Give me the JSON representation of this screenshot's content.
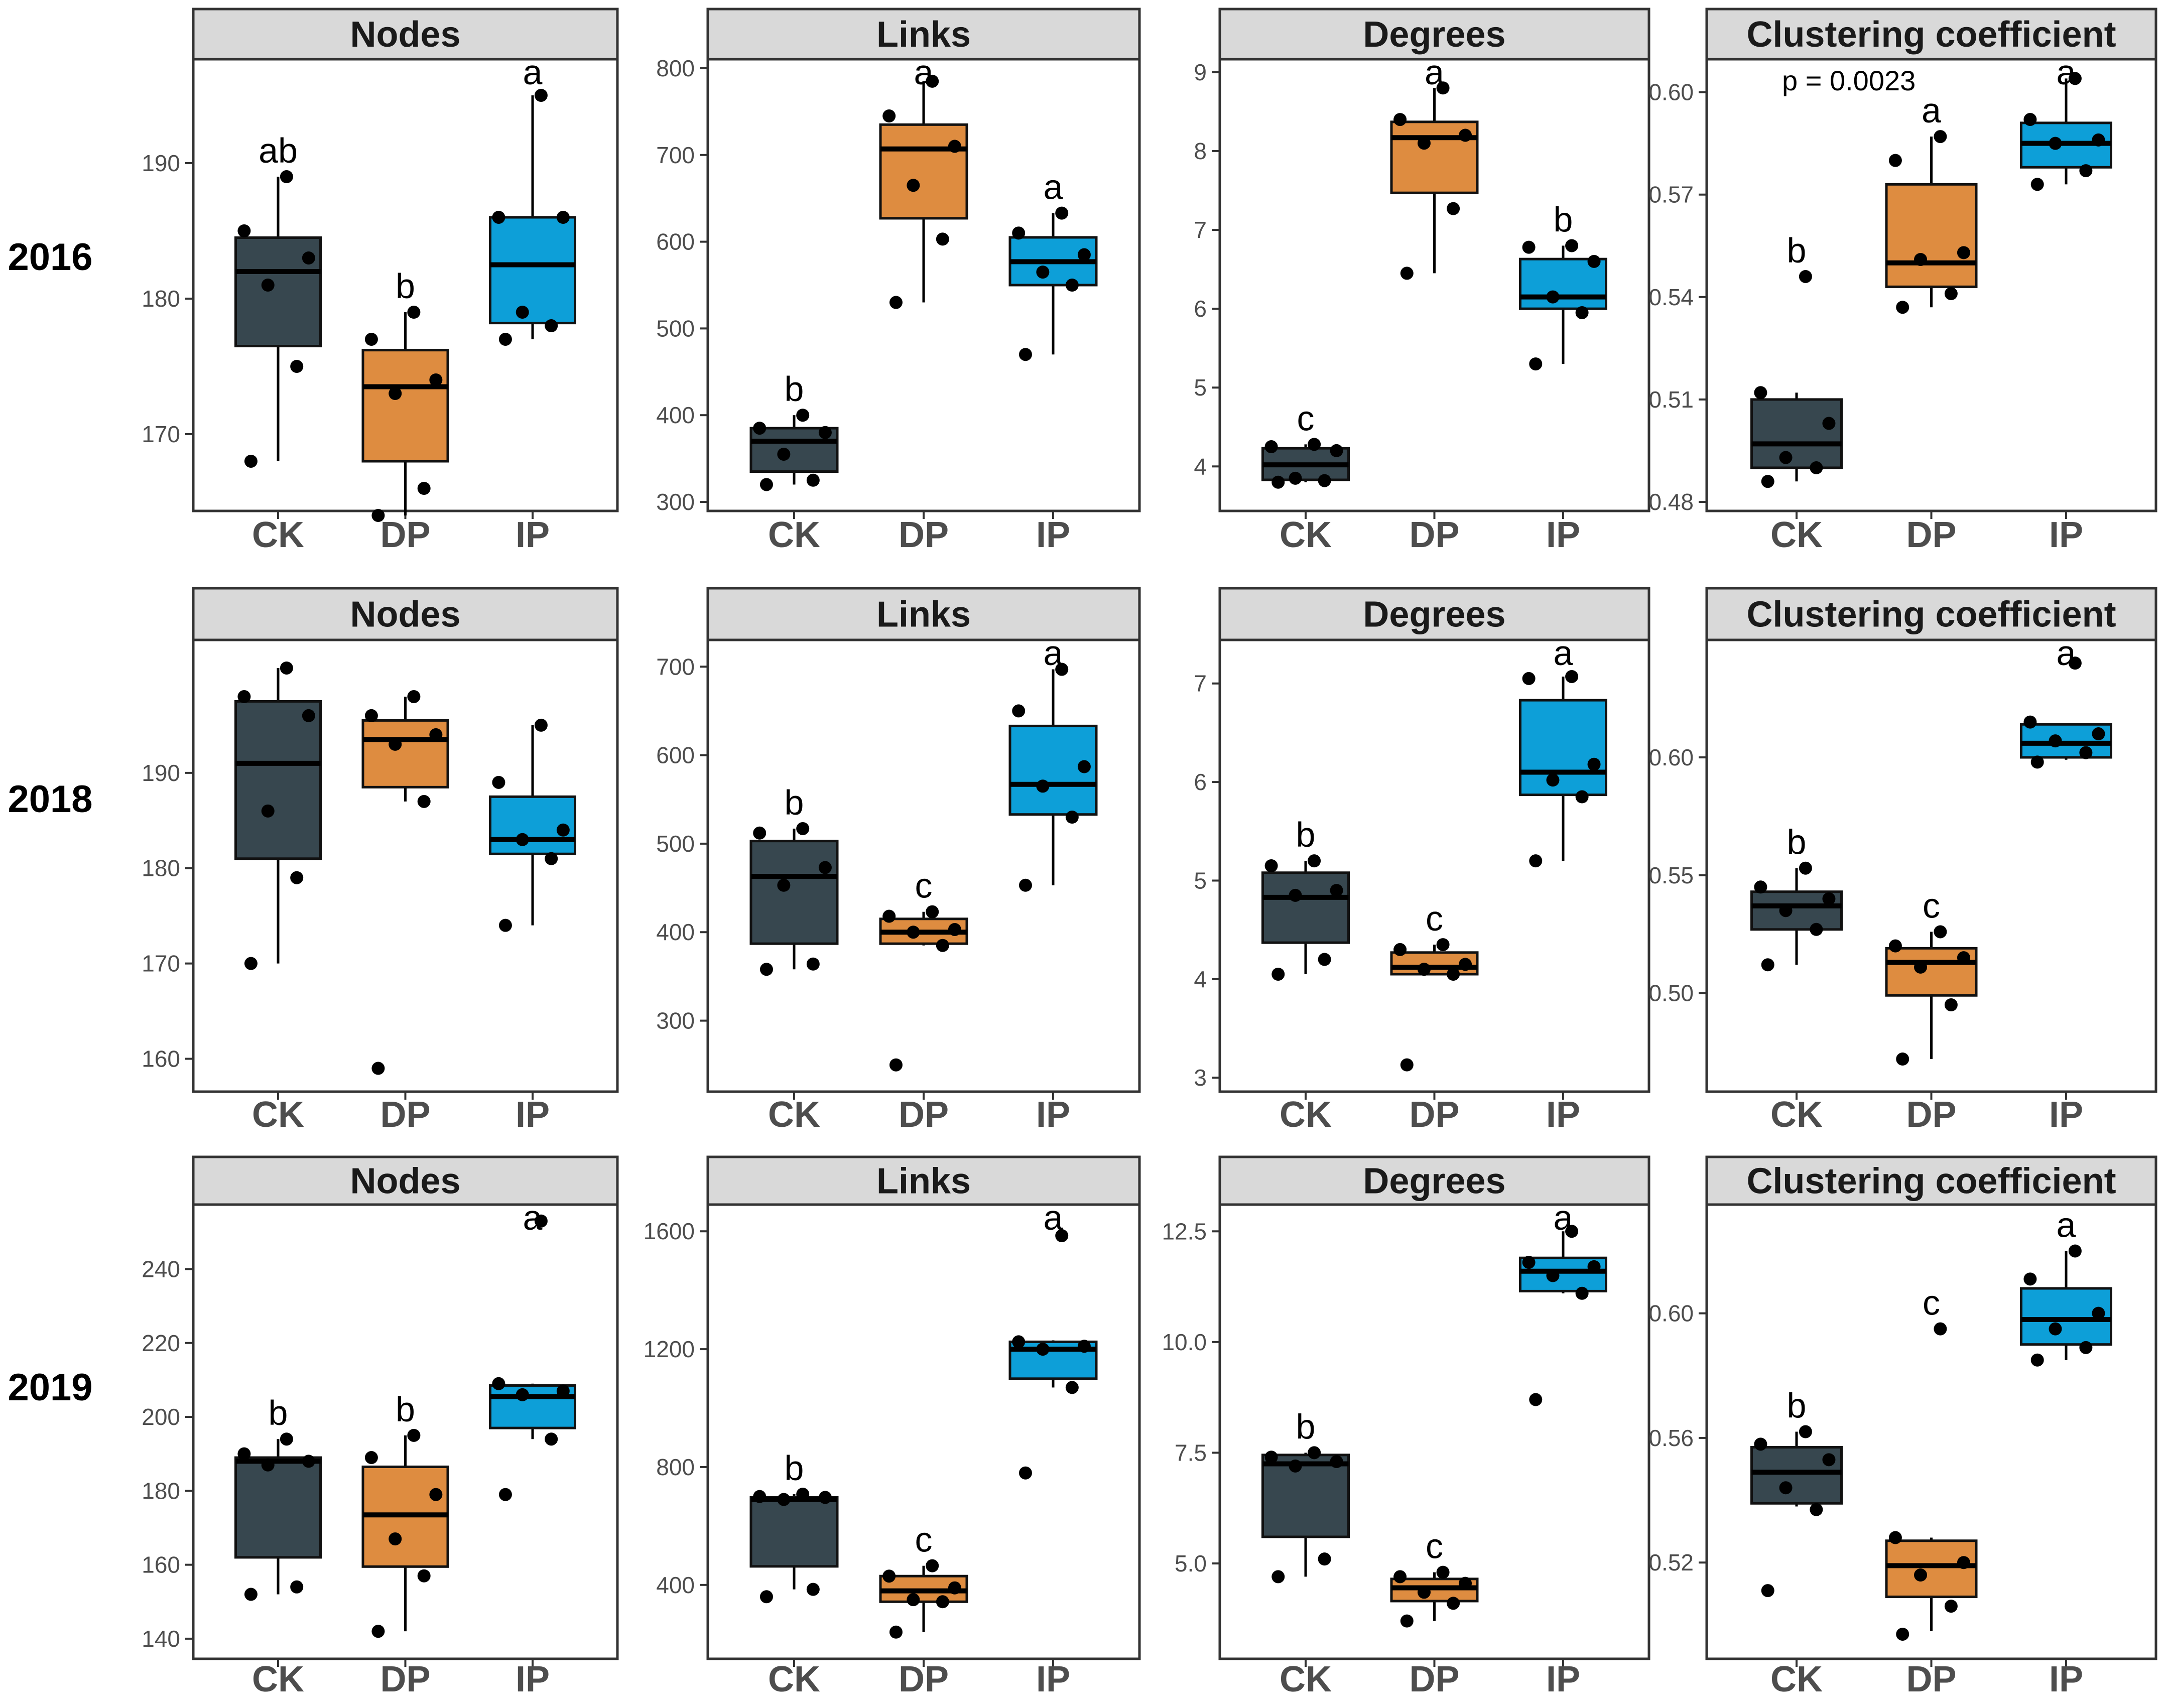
{
  "figure": {
    "rows": [
      "2016",
      "2018",
      "2019"
    ],
    "colors": {
      "CK": "#37474f",
      "DP": "#de8c40",
      "IP": "#0d9fd8",
      "strip": "#d9d9d9",
      "frame": "#333333"
    }
  },
  "chart_data": [
    {
      "type": "box",
      "title": "Nodes",
      "row_label": "2016",
      "categories": [
        "CK",
        "DP",
        "IP"
      ],
      "ylim": [
        165,
        197
      ],
      "yticks": [
        170,
        180,
        190
      ],
      "boxes": [
        {
          "group": "CK",
          "whisker_low": 168,
          "q1": 176.5,
          "median": 182,
          "q3": 184.5,
          "whisker_high": 189,
          "points": [
            168,
            175,
            181,
            183,
            185,
            189
          ],
          "letter": "ab"
        },
        {
          "group": "DP",
          "whisker_low": 164,
          "q1": 168,
          "median": 173.5,
          "q3": 176.2,
          "whisker_high": 179,
          "points": [
            164,
            166,
            173,
            174,
            177,
            179
          ],
          "letter": "b"
        },
        {
          "group": "IP",
          "whisker_low": 177,
          "q1": 178.2,
          "median": 182.5,
          "q3": 186,
          "whisker_high": 195,
          "points": [
            177,
            178,
            179,
            186,
            186,
            195
          ],
          "letter": "a"
        }
      ]
    },
    {
      "type": "box",
      "title": "Links",
      "row_label": "2016",
      "categories": [
        "CK",
        "DP",
        "IP"
      ],
      "ylim": [
        300,
        800
      ],
      "yticks": [
        300,
        400,
        500,
        600,
        700,
        800
      ],
      "boxes": [
        {
          "group": "CK",
          "whisker_low": 320,
          "q1": 335,
          "median": 370,
          "q3": 385,
          "whisker_high": 400,
          "points": [
            320,
            325,
            355,
            380,
            385,
            400
          ],
          "letter": "b"
        },
        {
          "group": "DP",
          "whisker_low": 530,
          "q1": 627,
          "median": 707,
          "q3": 735,
          "whisker_high": 785,
          "points": [
            530,
            603,
            665,
            710,
            745,
            785
          ],
          "letter": "a"
        },
        {
          "group": "IP",
          "whisker_low": 470,
          "q1": 550,
          "median": 577,
          "q3": 605,
          "whisker_high": 633,
          "points": [
            470,
            550,
            565,
            585,
            610,
            633
          ],
          "letter": "a"
        }
      ]
    },
    {
      "type": "box",
      "title": "Degrees",
      "row_label": "2016",
      "categories": [
        "CK",
        "DP",
        "IP"
      ],
      "ylim": [
        3.55,
        9.05
      ],
      "yticks": [
        4,
        5,
        6,
        7,
        8,
        9
      ],
      "boxes": [
        {
          "group": "CK",
          "whisker_low": 3.8,
          "q1": 3.83,
          "median": 4.02,
          "q3": 4.23,
          "whisker_high": 4.28,
          "points": [
            3.8,
            3.82,
            3.85,
            4.2,
            4.25,
            4.28
          ],
          "letter": "c"
        },
        {
          "group": "DP",
          "whisker_low": 6.45,
          "q1": 7.47,
          "median": 8.17,
          "q3": 8.37,
          "whisker_high": 8.8,
          "points": [
            6.45,
            7.27,
            8.1,
            8.2,
            8.4,
            8.8
          ],
          "letter": "a"
        },
        {
          "group": "IP",
          "whisker_low": 5.3,
          "q1": 6,
          "median": 6.15,
          "q3": 6.63,
          "whisker_high": 6.8,
          "points": [
            5.3,
            5.95,
            6.15,
            6.6,
            6.78,
            6.8
          ],
          "letter": "b"
        }
      ]
    },
    {
      "type": "box",
      "title": "Clustering coefficient",
      "row_label": "2016",
      "categories": [
        "CK",
        "DP",
        "IP"
      ],
      "ylim": [
        0.48,
        0.607
      ],
      "yticks": [
        0.48,
        0.51,
        0.54,
        0.57,
        0.6
      ],
      "annotation": "p = 0.0023",
      "boxes": [
        {
          "group": "CK",
          "whisker_low": 0.486,
          "q1": 0.49,
          "median": 0.497,
          "q3": 0.51,
          "whisker_high": 0.512,
          "points": [
            0.486,
            0.49,
            0.493,
            0.503,
            0.512,
            0.546
          ],
          "letter": "b"
        },
        {
          "group": "DP",
          "whisker_low": 0.537,
          "q1": 0.543,
          "median": 0.55,
          "q3": 0.573,
          "whisker_high": 0.587,
          "points": [
            0.537,
            0.541,
            0.551,
            0.553,
            0.58,
            0.587
          ],
          "letter": "a"
        },
        {
          "group": "IP",
          "whisker_low": 0.573,
          "q1": 0.578,
          "median": 0.585,
          "q3": 0.591,
          "whisker_high": 0.604,
          "points": [
            0.573,
            0.577,
            0.585,
            0.586,
            0.592,
            0.604
          ],
          "letter": "a"
        }
      ]
    },
    {
      "type": "box",
      "title": "Nodes",
      "row_label": "2018",
      "categories": [
        "CK",
        "DP",
        "IP"
      ],
      "ylim": [
        157.5,
        203
      ],
      "yticks": [
        160,
        170,
        180,
        190
      ],
      "boxes": [
        {
          "group": "CK",
          "whisker_low": 170,
          "q1": 181,
          "median": 191,
          "q3": 197.5,
          "whisker_high": 201,
          "points": [
            170,
            179,
            186,
            196,
            198,
            201
          ],
          "letter": ""
        },
        {
          "group": "DP",
          "whisker_low": 187,
          "q1": 188.5,
          "median": 193.5,
          "q3": 195.5,
          "whisker_high": 198,
          "points": [
            159,
            187,
            193,
            194,
            196,
            198
          ],
          "letter": ""
        },
        {
          "group": "IP",
          "whisker_low": 174,
          "q1": 181.5,
          "median": 183,
          "q3": 187.5,
          "whisker_high": 195,
          "points": [
            174,
            181,
            183,
            184,
            189,
            195
          ],
          "letter": ""
        }
      ]
    },
    {
      "type": "box",
      "title": "Links",
      "row_label": "2018",
      "categories": [
        "CK",
        "DP",
        "IP"
      ],
      "ylim": [
        230,
        720
      ],
      "yticks": [
        300,
        400,
        500,
        600,
        700
      ],
      "boxes": [
        {
          "group": "CK",
          "whisker_low": 358,
          "q1": 387,
          "median": 463,
          "q3": 503,
          "whisker_high": 517,
          "points": [
            358,
            364,
            453,
            473,
            512,
            517
          ],
          "letter": "b"
        },
        {
          "group": "DP",
          "whisker_low": 385,
          "q1": 387,
          "median": 400,
          "q3": 415,
          "whisker_high": 423,
          "points": [
            250,
            385,
            400,
            403,
            418,
            423
          ],
          "letter": "c"
        },
        {
          "group": "IP",
          "whisker_low": 453,
          "q1": 533,
          "median": 567,
          "q3": 633,
          "whisker_high": 697,
          "points": [
            453,
            530,
            565,
            587,
            650,
            697
          ],
          "letter": "a"
        }
      ]
    },
    {
      "type": "box",
      "title": "Degrees",
      "row_label": "2018",
      "categories": [
        "CK",
        "DP",
        "IP"
      ],
      "ylim": [
        2.95,
        7.35
      ],
      "yticks": [
        3,
        4,
        5,
        6,
        7
      ],
      "boxes": [
        {
          "group": "CK",
          "whisker_low": 4.05,
          "q1": 4.37,
          "median": 4.83,
          "q3": 5.08,
          "whisker_high": 5.2,
          "points": [
            4.05,
            4.2,
            4.85,
            4.9,
            5.15,
            5.2
          ],
          "letter": "b"
        },
        {
          "group": "DP",
          "whisker_low": 4.05,
          "q1": 4.05,
          "median": 4.12,
          "q3": 4.27,
          "whisker_high": 4.35,
          "points": [
            3.13,
            4.05,
            4.1,
            4.15,
            4.3,
            4.35
          ],
          "letter": "c"
        },
        {
          "group": "IP",
          "whisker_low": 5.2,
          "q1": 5.87,
          "median": 6.1,
          "q3": 6.83,
          "whisker_high": 7.07,
          "points": [
            5.2,
            5.85,
            6.02,
            6.18,
            7.05,
            7.07
          ],
          "letter": "a"
        }
      ]
    },
    {
      "type": "box",
      "title": "Clustering coefficient",
      "row_label": "2018",
      "categories": [
        "CK",
        "DP",
        "IP"
      ],
      "ylim": [
        0.462,
        0.646
      ],
      "yticks": [
        0.5,
        0.55,
        0.6
      ],
      "boxes": [
        {
          "group": "CK",
          "whisker_low": 0.512,
          "q1": 0.527,
          "median": 0.537,
          "q3": 0.543,
          "whisker_high": 0.553,
          "points": [
            0.512,
            0.527,
            0.535,
            0.54,
            0.545,
            0.553
          ],
          "letter": "b"
        },
        {
          "group": "DP",
          "whisker_low": 0.472,
          "q1": 0.499,
          "median": 0.513,
          "q3": 0.519,
          "whisker_high": 0.526,
          "points": [
            0.472,
            0.495,
            0.511,
            0.515,
            0.52,
            0.526
          ],
          "letter": "c"
        },
        {
          "group": "IP",
          "whisker_low": 0.599,
          "q1": 0.6,
          "median": 0.606,
          "q3": 0.614,
          "whisker_high": 0.614,
          "points": [
            0.598,
            0.602,
            0.607,
            0.61,
            0.615,
            0.64
          ],
          "letter": "a"
        }
      ]
    },
    {
      "type": "box",
      "title": "Nodes",
      "row_label": "2019",
      "categories": [
        "CK",
        "DP",
        "IP"
      ],
      "ylim": [
        137,
        255
      ],
      "yticks": [
        140,
        160,
        180,
        200,
        220,
        240
      ],
      "boxes": [
        {
          "group": "CK",
          "whisker_low": 152,
          "q1": 162,
          "median": 188,
          "q3": 189,
          "whisker_high": 194,
          "points": [
            152,
            154,
            187,
            188,
            190,
            194
          ],
          "letter": "b"
        },
        {
          "group": "DP",
          "whisker_low": 142,
          "q1": 159.5,
          "median": 173.5,
          "q3": 186.5,
          "whisker_high": 195,
          "points": [
            142,
            157,
            167,
            179,
            189,
            195
          ],
          "letter": "b"
        },
        {
          "group": "IP",
          "whisker_low": 194,
          "q1": 197,
          "median": 205.5,
          "q3": 208.5,
          "whisker_high": 209,
          "points": [
            179,
            194,
            206,
            207,
            209,
            253
          ],
          "letter": "a"
        }
      ]
    },
    {
      "type": "box",
      "title": "Links",
      "row_label": "2019",
      "categories": [
        "CK",
        "DP",
        "IP"
      ],
      "ylim": [
        180,
        1660
      ],
      "yticks": [
        400,
        800,
        1200,
        1600
      ],
      "boxes": [
        {
          "group": "CK",
          "whisker_low": 385,
          "q1": 463,
          "median": 690,
          "q3": 697,
          "whisker_high": 708,
          "points": [
            360,
            385,
            690,
            697,
            700,
            708
          ],
          "letter": "b"
        },
        {
          "group": "DP",
          "whisker_low": 240,
          "q1": 343,
          "median": 380,
          "q3": 430,
          "whisker_high": 465,
          "points": [
            240,
            343,
            350,
            390,
            430,
            465
          ],
          "letter": "c"
        },
        {
          "group": "IP",
          "whisker_low": 1070,
          "q1": 1100,
          "median": 1200,
          "q3": 1225,
          "whisker_high": 1230,
          "points": [
            780,
            1070,
            1200,
            1210,
            1225,
            1585
          ],
          "letter": "a"
        }
      ]
    },
    {
      "type": "box",
      "title": "Degrees",
      "row_label": "2019",
      "categories": [
        "CK",
        "DP",
        "IP"
      ],
      "ylim": [
        3.05,
        12.9
      ],
      "yticks": [
        5,
        7.5,
        10,
        12.5
      ],
      "boxes": [
        {
          "group": "CK",
          "whisker_low": 4.7,
          "q1": 5.6,
          "median": 7.25,
          "q3": 7.45,
          "whisker_high": 7.5,
          "points": [
            4.7,
            5.1,
            7.2,
            7.3,
            7.4,
            7.5
          ],
          "letter": "b"
        },
        {
          "group": "DP",
          "whisker_low": 3.7,
          "q1": 4.15,
          "median": 4.45,
          "q3": 4.65,
          "whisker_high": 4.8,
          "points": [
            3.7,
            4.1,
            4.35,
            4.55,
            4.7,
            4.8
          ],
          "letter": "c"
        },
        {
          "group": "IP",
          "whisker_low": 11.1,
          "q1": 11.15,
          "median": 11.6,
          "q3": 11.9,
          "whisker_high": 12.5,
          "points": [
            8.7,
            11.1,
            11.5,
            11.7,
            11.8,
            12.5
          ],
          "letter": "a"
        }
      ]
    },
    {
      "type": "box",
      "title": "Clustering coefficient",
      "row_label": "2019",
      "categories": [
        "CK",
        "DP",
        "IP"
      ],
      "ylim": [
        0.492,
        0.632
      ],
      "yticks": [
        0.52,
        0.56,
        0.6
      ],
      "boxes": [
        {
          "group": "CK",
          "whisker_low": 0.538,
          "q1": 0.539,
          "median": 0.549,
          "q3": 0.557,
          "whisker_high": 0.562,
          "points": [
            0.511,
            0.537,
            0.544,
            0.553,
            0.558,
            0.562
          ],
          "letter": "b"
        },
        {
          "group": "DP",
          "whisker_low": 0.498,
          "q1": 0.509,
          "median": 0.519,
          "q3": 0.527,
          "whisker_high": 0.528,
          "points": [
            0.497,
            0.506,
            0.516,
            0.52,
            0.528,
            0.595
          ],
          "letter": "c"
        },
        {
          "group": "IP",
          "whisker_low": 0.585,
          "q1": 0.59,
          "median": 0.598,
          "q3": 0.608,
          "whisker_high": 0.62,
          "points": [
            0.585,
            0.589,
            0.595,
            0.6,
            0.611,
            0.62
          ],
          "letter": "a"
        }
      ]
    }
  ]
}
